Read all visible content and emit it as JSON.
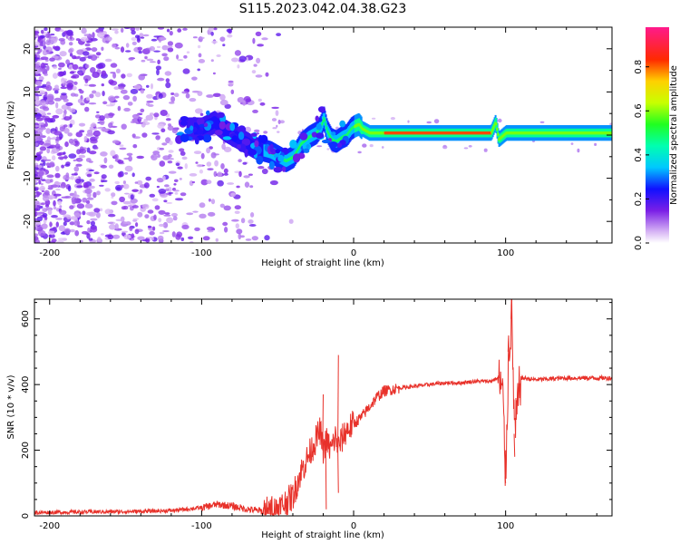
{
  "title": "S115.2023.042.04.38.G23",
  "top_panel": {
    "xlabel": "Height of straight line (km)",
    "ylabel": "Frequency (Hz)",
    "colorbar_label": "Normalized spectral amplitude",
    "xticks": [
      "-200",
      "-100",
      "0",
      "100"
    ],
    "yticks": [
      "20",
      "10",
      "0",
      "-10",
      "-20"
    ],
    "cbticks": [
      "0.0",
      "0.2",
      "0.4",
      "0.6",
      "0.8"
    ]
  },
  "bottom_panel": {
    "xlabel": "Height of straight line (km)",
    "ylabel": "SNR (10 * v/v)",
    "xticks": [
      "-200",
      "-100",
      "0",
      "100"
    ],
    "yticks": [
      "0",
      "200",
      "400",
      "600"
    ]
  },
  "chart_data": [
    {
      "type": "heatmap",
      "title": "S115.2023.042.04.38.G23",
      "xlabel": "Height of straight line (km)",
      "ylabel": "Frequency (Hz)",
      "xlim": [
        -210,
        170
      ],
      "ylim": [
        -25,
        25
      ],
      "colorbar": {
        "label": "Normalized spectral amplitude",
        "range": [
          0,
          1
        ],
        "colormap": "rainbow (white-purple-blue-cyan-green-yellow-red-pink)"
      },
      "ridge": {
        "x": [
          -110,
          -100,
          -92,
          -85,
          -75,
          -65,
          -55,
          -50,
          -45,
          -40,
          -35,
          -30,
          -25,
          -22,
          -20,
          -18,
          -15,
          -12,
          -8,
          -5,
          -2,
          0,
          3,
          5,
          10,
          20,
          50,
          90,
          93,
          95,
          100,
          130,
          170
        ],
        "y": [
          1.5,
          1.5,
          3,
          1,
          -1,
          -3,
          -4,
          -5,
          -6,
          -5,
          -2,
          -0.5,
          0.5,
          2,
          4,
          1,
          -1,
          -1.5,
          -0.5,
          0,
          1.5,
          2,
          2.5,
          1.5,
          0.5,
          0.5,
          0.5,
          0.5,
          3,
          -1,
          0.5,
          0.5,
          0.5
        ]
      }
    },
    {
      "type": "line",
      "xlabel": "Height of straight line (km)",
      "ylabel": "SNR (10 * v/v)",
      "xlim": [
        -210,
        170
      ],
      "ylim": [
        0,
        660
      ],
      "color": "#e8312a",
      "series": [
        {
          "x": [
            -210,
            -180,
            -150,
            -120,
            -100,
            -90,
            -80,
            -70,
            -60,
            -50,
            -40,
            -35,
            -30,
            -25,
            -22,
            -20,
            -18,
            -15,
            -12,
            -10,
            -5,
            0,
            5,
            10,
            15,
            20,
            25,
            30,
            40,
            50,
            60,
            70,
            80,
            90,
            95,
            98,
            100,
            102,
            104,
            106,
            110,
            120,
            140,
            160,
            170
          ],
          "y": [
            10,
            12,
            13,
            16,
            25,
            35,
            30,
            20,
            15,
            20,
            60,
            130,
            180,
            230,
            260,
            200,
            230,
            200,
            240,
            210,
            260,
            280,
            300,
            330,
            360,
            380,
            385,
            390,
            395,
            400,
            405,
            405,
            410,
            410,
            420,
            380,
            120,
            500,
            600,
            250,
            420,
            415,
            420,
            420,
            420
          ]
        }
      ],
      "spikes": [
        {
          "x": -20,
          "y": 370
        },
        {
          "x": -10,
          "y": 490
        },
        {
          "x": 102,
          "y": 550
        },
        {
          "x": 104,
          "y": 660
        },
        {
          "x": 100,
          "y": 100
        },
        {
          "x": 106,
          "y": 180
        },
        {
          "x": -18,
          "y": 20
        },
        {
          "x": -10,
          "y": 70
        }
      ]
    }
  ]
}
